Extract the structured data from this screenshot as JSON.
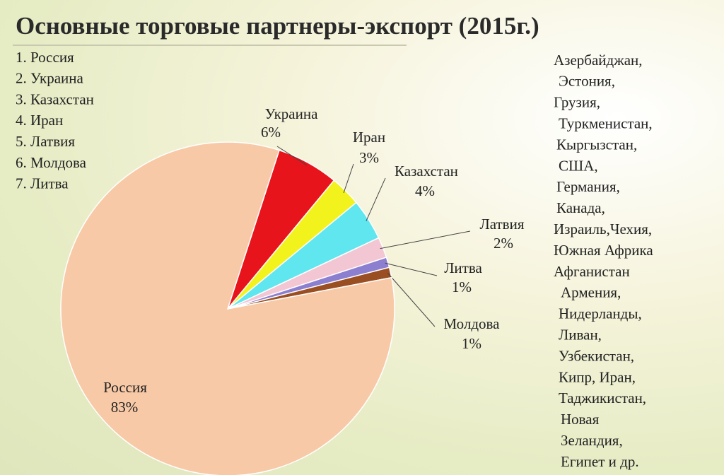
{
  "chart_data": {
    "type": "pie",
    "title": "Основные торговые партнеры-экспорт (2015г.)",
    "categories": [
      "Украина",
      "Иран",
      "Казахстан",
      "Латвия",
      "Литва",
      "Молдова",
      "Россия"
    ],
    "values": [
      6,
      3,
      4,
      2,
      1,
      1,
      83
    ],
    "value_labels": [
      "6%",
      "3%",
      "4%",
      "2%",
      "1%",
      "1%",
      "83%"
    ],
    "colors": [
      "#e8141b",
      "#f2f21c",
      "#5fe6ef",
      "#f3c6d3",
      "#8c7fd0",
      "#9a4f22",
      "#f8c9a6"
    ]
  },
  "ranking": [
    "1. Россия",
    "2. Украина",
    "3. Казахстан",
    "4. Иран",
    "5. Латвия",
    "6. Молдова",
    "7. Литва"
  ],
  "other_partners": [
    "Азербайджан,",
    "Эстония,",
    "Грузия,",
    "Туркменистан,",
    "Кыргызстан,",
    "США,",
    "Германия,",
    "Канада,",
    "Израиль,Чехия,",
    "Южная Африка",
    "Афганистан",
    "Армения,",
    "Нидерланды,",
    "Ливан,",
    "Узбекистан,",
    "Кипр, Иран,",
    "Таджикистан,",
    "Новая",
    "Зеландия,",
    "Египет и др."
  ]
}
